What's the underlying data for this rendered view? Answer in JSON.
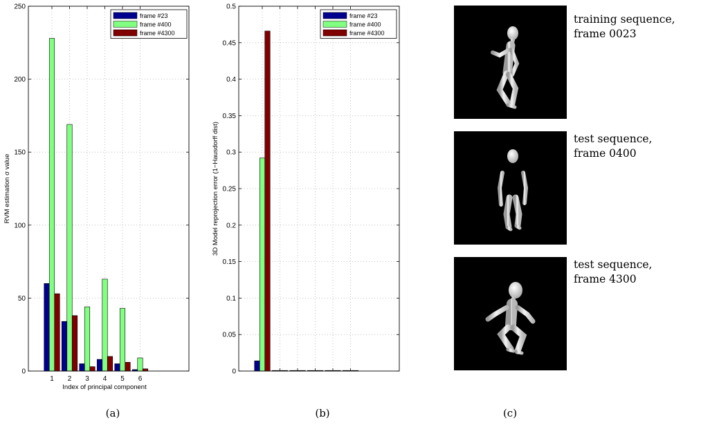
{
  "chart_data": [
    {
      "id": "a",
      "type": "bar",
      "caption": "(a)",
      "categories": [
        "1",
        "2",
        "3",
        "4",
        "5",
        "6"
      ],
      "series": [
        {
          "name": "frame #23",
          "color": "#00008f",
          "values": [
            60,
            34,
            5,
            8,
            5,
            1
          ]
        },
        {
          "name": "frame #400",
          "color": "#80ff80",
          "values": [
            228,
            169,
            44,
            63,
            43,
            9
          ]
        },
        {
          "name": "frame #4300",
          "color": "#800000",
          "values": [
            53,
            38,
            3,
            10,
            6,
            1.5
          ]
        }
      ],
      "xlabel": "Index of principal component",
      "ylabel": "RVM estimation σ value",
      "ylim": [
        0,
        250
      ],
      "yticks": [
        0,
        50,
        100,
        150,
        200,
        250
      ],
      "grid": true,
      "legend_position": "top-right"
    },
    {
      "id": "b",
      "type": "bar",
      "caption": "(b)",
      "categories": [
        "1",
        "2",
        "3",
        "4",
        "5",
        "6"
      ],
      "show_category_labels": false,
      "series": [
        {
          "name": "frame #23",
          "color": "#00008f",
          "values": [
            0.014,
            0,
            0,
            0,
            0,
            0
          ]
        },
        {
          "name": "frame #400",
          "color": "#80ff80",
          "values": [
            0.292,
            0,
            0,
            0,
            0,
            0
          ]
        },
        {
          "name": "frame #4300",
          "color": "#800000",
          "values": [
            0.466,
            0,
            0,
            0,
            0,
            0
          ]
        }
      ],
      "xlabel": "",
      "ylabel": "3D Model reprojection error (1−Hausdorff dist)",
      "ylim": [
        0,
        0.5
      ],
      "yticks": [
        "0",
        "0.05",
        "0.1",
        "0.15",
        "0.2",
        "0.25",
        "0.3",
        "0.35",
        "0.4",
        "0.45",
        "0.5"
      ],
      "grid": true,
      "legend_position": "top-right"
    }
  ],
  "panel_c": {
    "caption": "(c)",
    "items": [
      {
        "line1": "training sequence,",
        "line2": "frame 0023"
      },
      {
        "line1": "test sequence,",
        "line2": "frame 0400"
      },
      {
        "line1": "test sequence,",
        "line2": "frame 4300"
      }
    ]
  }
}
